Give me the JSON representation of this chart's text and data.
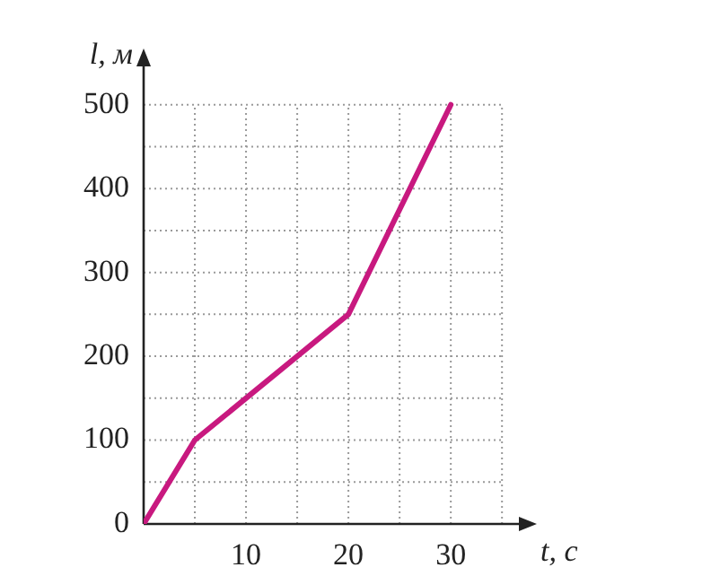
{
  "chart_data": {
    "type": "line",
    "xlabel": "t, с",
    "ylabel": "l, м",
    "x": [
      0,
      5,
      20,
      30
    ],
    "series": [
      {
        "color": "#c8197f",
        "values": [
          0,
          100,
          250,
          500
        ]
      }
    ],
    "xlim": [
      0,
      37
    ],
    "ylim": [
      0,
      550
    ],
    "xticks": [
      {
        "value": 0,
        "label": null
      },
      {
        "value": 5,
        "label": null
      },
      10,
      {
        "value": 15,
        "label": null
      },
      20,
      {
        "value": 25,
        "label": null
      },
      30,
      {
        "value": 35,
        "label": null
      }
    ],
    "yticks": [
      0,
      {
        "value": 50,
        "label": null
      },
      100,
      {
        "value": 150,
        "label": null
      },
      200,
      {
        "value": 250,
        "label": null
      },
      300,
      {
        "value": 350,
        "label": null
      },
      400,
      {
        "value": 450,
        "label": null
      },
      500
    ],
    "grid": true,
    "marker": "none",
    "line_style": "solid",
    "legend": false
  }
}
